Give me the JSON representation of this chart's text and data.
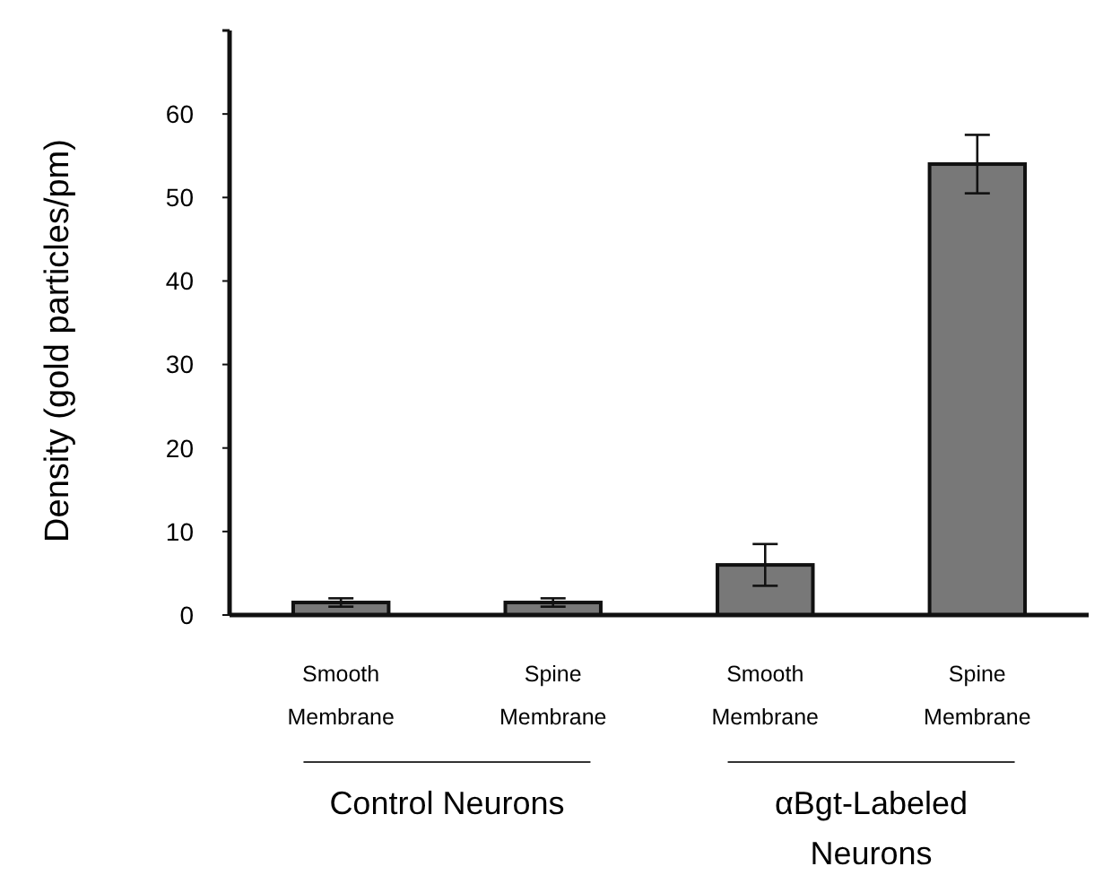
{
  "chart_data": {
    "type": "bar",
    "ylabel": "Density  (gold particles/pm)",
    "categories": [
      "Smooth Membrane",
      "Spine Membrane",
      "Smooth Membrane",
      "Spine Membrane"
    ],
    "values": [
      1.5,
      1.5,
      6,
      54
    ],
    "errors": [
      0.5,
      0.5,
      2.5,
      3.5
    ],
    "color": "#787878",
    "ylim": [
      0,
      70
    ],
    "yticks": [
      0,
      10,
      20,
      30,
      40,
      50,
      60
    ],
    "annotations": [
      "Control Neurons",
      "αBgt-Labeled Neurons"
    ],
    "grid": false
  }
}
